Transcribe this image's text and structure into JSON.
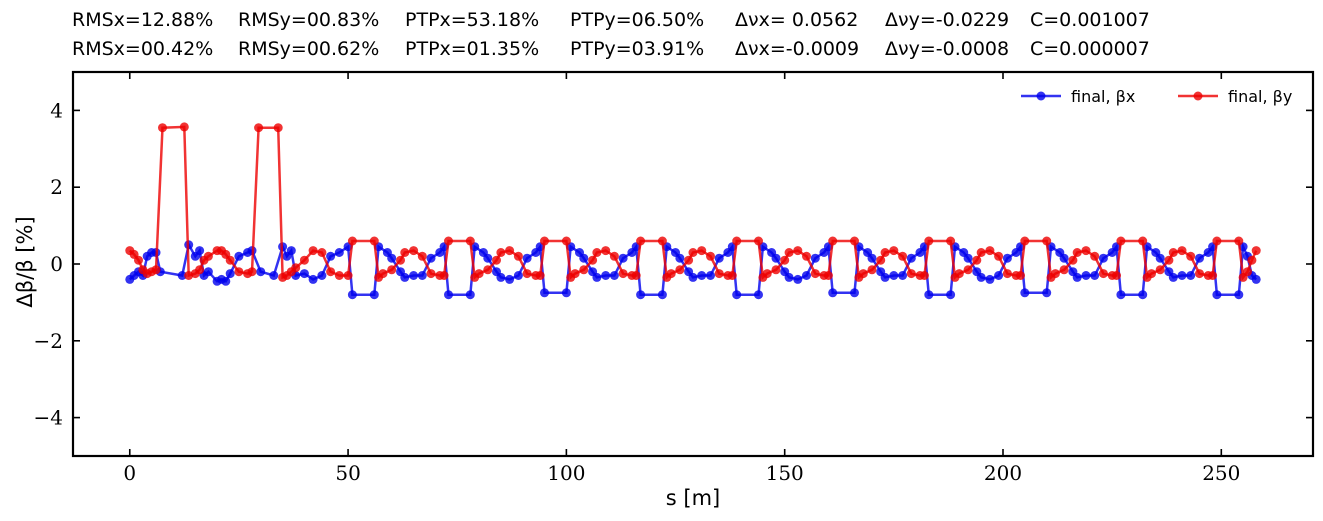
{
  "header": {
    "line1": [
      "RMSx=12.88%",
      "RMSy=00.83%",
      "PTPx=53.18%",
      "PTPy=06.50%",
      "Δνx= 0.0562",
      "Δνy=-0.0229",
      "C=0.001007"
    ],
    "line2": [
      "RMSx=00.42%",
      "RMSy=00.62%",
      "PTPx=01.35%",
      "PTPy=03.91%",
      "Δνx=-0.0009",
      "Δνy=-0.0008",
      "C=0.000007"
    ]
  },
  "chart_data": {
    "type": "line",
    "xlabel": "s [m]",
    "ylabel": "Δβ/β [%]",
    "xlim": [
      -13,
      271
    ],
    "ylim": [
      -5,
      5
    ],
    "xticks": [
      0,
      50,
      100,
      150,
      200,
      250
    ],
    "xtick_labels": [
      "0",
      "50",
      "100",
      "150",
      "200",
      "250"
    ],
    "yticks": [
      -4,
      -2,
      0,
      2,
      4
    ],
    "ytick_labels": [
      "−4",
      "−2",
      "0",
      "2",
      "4"
    ],
    "legend_position": "top-right",
    "series": [
      {
        "name": "final, βx",
        "color": "#0000ee",
        "points": [
          [
            0,
            -0.4
          ],
          [
            1,
            -0.3
          ],
          [
            2,
            -0.2
          ],
          [
            3,
            -0.3
          ],
          [
            4,
            0.2
          ],
          [
            5,
            0.3
          ],
          [
            6,
            0.3
          ],
          [
            7,
            -0.2
          ],
          [
            12,
            -0.3
          ],
          [
            13.5,
            0.5
          ],
          [
            15,
            0.2
          ],
          [
            16,
            0.35
          ],
          [
            17,
            -0.3
          ],
          [
            18,
            -0.2
          ],
          [
            20,
            -0.45
          ],
          [
            21,
            -0.4
          ],
          [
            22,
            -0.45
          ],
          [
            23,
            -0.25
          ],
          [
            25,
            0.2
          ],
          [
            27,
            0.3
          ],
          [
            28,
            0.35
          ],
          [
            30,
            -0.2
          ],
          [
            33,
            -0.3
          ],
          [
            35,
            0.45
          ],
          [
            36,
            0.2
          ],
          [
            37,
            0.35
          ],
          [
            38,
            -0.3
          ],
          [
            40,
            -0.25
          ],
          [
            42,
            -0.4
          ],
          [
            44,
            -0.3
          ],
          [
            46,
            0.2
          ],
          [
            48,
            0.3
          ],
          [
            50,
            0.45
          ],
          [
            51,
            -0.8
          ],
          [
            56,
            -0.8
          ],
          [
            57,
            0.45
          ],
          [
            59,
            0.3
          ],
          [
            60,
            0.15
          ],
          [
            62,
            -0.2
          ],
          [
            63,
            -0.35
          ],
          [
            65,
            -0.3
          ],
          [
            67,
            -0.3
          ],
          [
            69,
            0.15
          ],
          [
            71,
            0.3
          ],
          [
            72,
            0.45
          ],
          [
            73,
            -0.8
          ],
          [
            78,
            -0.8
          ],
          [
            79,
            0.45
          ],
          [
            81,
            0.3
          ],
          [
            82,
            0.15
          ],
          [
            84,
            -0.2
          ],
          [
            85,
            -0.35
          ],
          [
            87,
            -0.4
          ],
          [
            89,
            -0.3
          ],
          [
            91,
            0.15
          ],
          [
            93,
            0.3
          ],
          [
            94,
            0.45
          ],
          [
            95,
            -0.75
          ],
          [
            100,
            -0.75
          ],
          [
            101,
            0.45
          ],
          [
            103,
            0.3
          ],
          [
            104,
            0.15
          ],
          [
            106,
            -0.2
          ],
          [
            107,
            -0.35
          ],
          [
            109,
            -0.3
          ],
          [
            111,
            -0.3
          ],
          [
            113,
            0.15
          ],
          [
            115,
            0.3
          ],
          [
            116,
            0.45
          ],
          [
            117,
            -0.8
          ],
          [
            122,
            -0.8
          ],
          [
            123,
            0.45
          ],
          [
            125,
            0.3
          ],
          [
            126,
            0.15
          ],
          [
            128,
            -0.2
          ],
          [
            129,
            -0.35
          ],
          [
            131,
            -0.3
          ],
          [
            133,
            -0.3
          ],
          [
            135,
            0.15
          ],
          [
            137,
            0.3
          ],
          [
            138,
            0.45
          ],
          [
            139,
            -0.8
          ],
          [
            144,
            -0.8
          ],
          [
            145,
            0.45
          ],
          [
            147,
            0.3
          ],
          [
            148,
            0.15
          ],
          [
            150,
            -0.2
          ],
          [
            151,
            -0.35
          ],
          [
            153,
            -0.4
          ],
          [
            155,
            -0.3
          ],
          [
            157,
            0.15
          ],
          [
            159,
            0.3
          ],
          [
            160,
            0.45
          ],
          [
            161,
            -0.75
          ],
          [
            166,
            -0.75
          ],
          [
            167,
            0.45
          ],
          [
            169,
            0.3
          ],
          [
            170,
            0.15
          ],
          [
            172,
            -0.2
          ],
          [
            173,
            -0.35
          ],
          [
            175,
            -0.3
          ],
          [
            177,
            -0.3
          ],
          [
            179,
            0.15
          ],
          [
            181,
            0.3
          ],
          [
            182,
            0.45
          ],
          [
            183,
            -0.8
          ],
          [
            188,
            -0.8
          ],
          [
            189,
            0.45
          ],
          [
            191,
            0.3
          ],
          [
            192,
            0.15
          ],
          [
            194,
            -0.2
          ],
          [
            195,
            -0.35
          ],
          [
            197,
            -0.4
          ],
          [
            199,
            -0.3
          ],
          [
            201,
            0.15
          ],
          [
            203,
            0.3
          ],
          [
            204,
            0.45
          ],
          [
            205,
            -0.75
          ],
          [
            210,
            -0.75
          ],
          [
            211,
            0.45
          ],
          [
            213,
            0.3
          ],
          [
            214,
            0.15
          ],
          [
            216,
            -0.2
          ],
          [
            217,
            -0.35
          ],
          [
            219,
            -0.3
          ],
          [
            221,
            -0.3
          ],
          [
            223,
            0.15
          ],
          [
            225,
            0.3
          ],
          [
            226,
            0.45
          ],
          [
            227,
            -0.8
          ],
          [
            232,
            -0.8
          ],
          [
            233,
            0.45
          ],
          [
            235,
            0.3
          ],
          [
            236,
            0.15
          ],
          [
            238,
            -0.2
          ],
          [
            239,
            -0.35
          ],
          [
            241,
            -0.3
          ],
          [
            243,
            -0.3
          ],
          [
            245,
            0.15
          ],
          [
            247,
            0.3
          ],
          [
            248,
            0.45
          ],
          [
            249,
            -0.8
          ],
          [
            254,
            -0.8
          ],
          [
            255,
            0.45
          ],
          [
            256,
            0.2
          ],
          [
            257,
            -0.3
          ],
          [
            258,
            -0.4
          ]
        ]
      },
      {
        "name": "final, βy",
        "color": "#ee0000",
        "points": [
          [
            0,
            0.35
          ],
          [
            1,
            0.25
          ],
          [
            2,
            0.1
          ],
          [
            3,
            -0.15
          ],
          [
            4,
            -0.25
          ],
          [
            5,
            -0.2
          ],
          [
            6,
            -0.15
          ],
          [
            7.5,
            3.55
          ],
          [
            12.5,
            3.57
          ],
          [
            13.5,
            -0.3
          ],
          [
            15,
            -0.25
          ],
          [
            16,
            -0.15
          ],
          [
            17,
            0.1
          ],
          [
            18,
            0.2
          ],
          [
            20,
            0.35
          ],
          [
            21,
            0.35
          ],
          [
            22,
            0.25
          ],
          [
            23,
            0.1
          ],
          [
            25,
            -0.2
          ],
          [
            27,
            -0.25
          ],
          [
            28,
            -0.2
          ],
          [
            29.5,
            3.55
          ],
          [
            34,
            3.55
          ],
          [
            35,
            -0.35
          ],
          [
            36,
            -0.3
          ],
          [
            37,
            -0.2
          ],
          [
            38,
            -0.1
          ],
          [
            40,
            0.1
          ],
          [
            42,
            0.35
          ],
          [
            44,
            0.3
          ],
          [
            46,
            -0.2
          ],
          [
            48,
            -0.3
          ],
          [
            50,
            -0.3
          ],
          [
            51,
            0.6
          ],
          [
            56,
            0.6
          ],
          [
            57,
            -0.35
          ],
          [
            58,
            -0.25
          ],
          [
            60,
            -0.15
          ],
          [
            62,
            0.1
          ],
          [
            63,
            0.3
          ],
          [
            65,
            0.35
          ],
          [
            67,
            0.2
          ],
          [
            69,
            -0.25
          ],
          [
            71,
            -0.3
          ],
          [
            72,
            -0.3
          ],
          [
            73,
            0.6
          ],
          [
            78,
            0.6
          ],
          [
            79,
            -0.35
          ],
          [
            80,
            -0.25
          ],
          [
            82,
            -0.15
          ],
          [
            84,
            0.1
          ],
          [
            85,
            0.3
          ],
          [
            87,
            0.35
          ],
          [
            89,
            0.2
          ],
          [
            91,
            -0.25
          ],
          [
            93,
            -0.3
          ],
          [
            94,
            -0.3
          ],
          [
            95,
            0.6
          ],
          [
            100,
            0.6
          ],
          [
            101,
            -0.35
          ],
          [
            102,
            -0.25
          ],
          [
            104,
            -0.15
          ],
          [
            106,
            0.1
          ],
          [
            107,
            0.3
          ],
          [
            109,
            0.35
          ],
          [
            111,
            0.2
          ],
          [
            113,
            -0.25
          ],
          [
            115,
            -0.3
          ],
          [
            116,
            -0.3
          ],
          [
            117,
            0.6
          ],
          [
            122,
            0.6
          ],
          [
            123,
            -0.35
          ],
          [
            124,
            -0.25
          ],
          [
            126,
            -0.15
          ],
          [
            128,
            0.1
          ],
          [
            129,
            0.3
          ],
          [
            131,
            0.35
          ],
          [
            133,
            0.2
          ],
          [
            135,
            -0.25
          ],
          [
            137,
            -0.3
          ],
          [
            138,
            -0.3
          ],
          [
            139,
            0.6
          ],
          [
            144,
            0.6
          ],
          [
            145,
            -0.35
          ],
          [
            146,
            -0.25
          ],
          [
            148,
            -0.15
          ],
          [
            150,
            0.1
          ],
          [
            151,
            0.3
          ],
          [
            153,
            0.35
          ],
          [
            155,
            0.2
          ],
          [
            157,
            -0.25
          ],
          [
            159,
            -0.3
          ],
          [
            160,
            -0.3
          ],
          [
            161,
            0.6
          ],
          [
            166,
            0.6
          ],
          [
            167,
            -0.35
          ],
          [
            168,
            -0.25
          ],
          [
            170,
            -0.15
          ],
          [
            172,
            0.1
          ],
          [
            173,
            0.3
          ],
          [
            175,
            0.35
          ],
          [
            177,
            0.2
          ],
          [
            179,
            -0.25
          ],
          [
            181,
            -0.3
          ],
          [
            182,
            -0.3
          ],
          [
            183,
            0.6
          ],
          [
            188,
            0.6
          ],
          [
            189,
            -0.35
          ],
          [
            190,
            -0.25
          ],
          [
            192,
            -0.15
          ],
          [
            194,
            0.1
          ],
          [
            195,
            0.3
          ],
          [
            197,
            0.35
          ],
          [
            199,
            0.2
          ],
          [
            201,
            -0.25
          ],
          [
            203,
            -0.3
          ],
          [
            204,
            -0.3
          ],
          [
            205,
            0.6
          ],
          [
            210,
            0.6
          ],
          [
            211,
            -0.35
          ],
          [
            212,
            -0.25
          ],
          [
            214,
            -0.15
          ],
          [
            216,
            0.1
          ],
          [
            217,
            0.3
          ],
          [
            219,
            0.35
          ],
          [
            221,
            0.2
          ],
          [
            223,
            -0.25
          ],
          [
            225,
            -0.3
          ],
          [
            226,
            -0.3
          ],
          [
            227,
            0.6
          ],
          [
            232,
            0.6
          ],
          [
            233,
            -0.35
          ],
          [
            234,
            -0.25
          ],
          [
            236,
            -0.15
          ],
          [
            238,
            0.1
          ],
          [
            239,
            0.3
          ],
          [
            241,
            0.35
          ],
          [
            243,
            0.2
          ],
          [
            245,
            -0.25
          ],
          [
            247,
            -0.3
          ],
          [
            248,
            -0.3
          ],
          [
            249,
            0.6
          ],
          [
            254,
            0.6
          ],
          [
            255,
            -0.35
          ],
          [
            256,
            -0.2
          ],
          [
            257,
            0.1
          ],
          [
            258,
            0.35
          ]
        ]
      }
    ]
  }
}
